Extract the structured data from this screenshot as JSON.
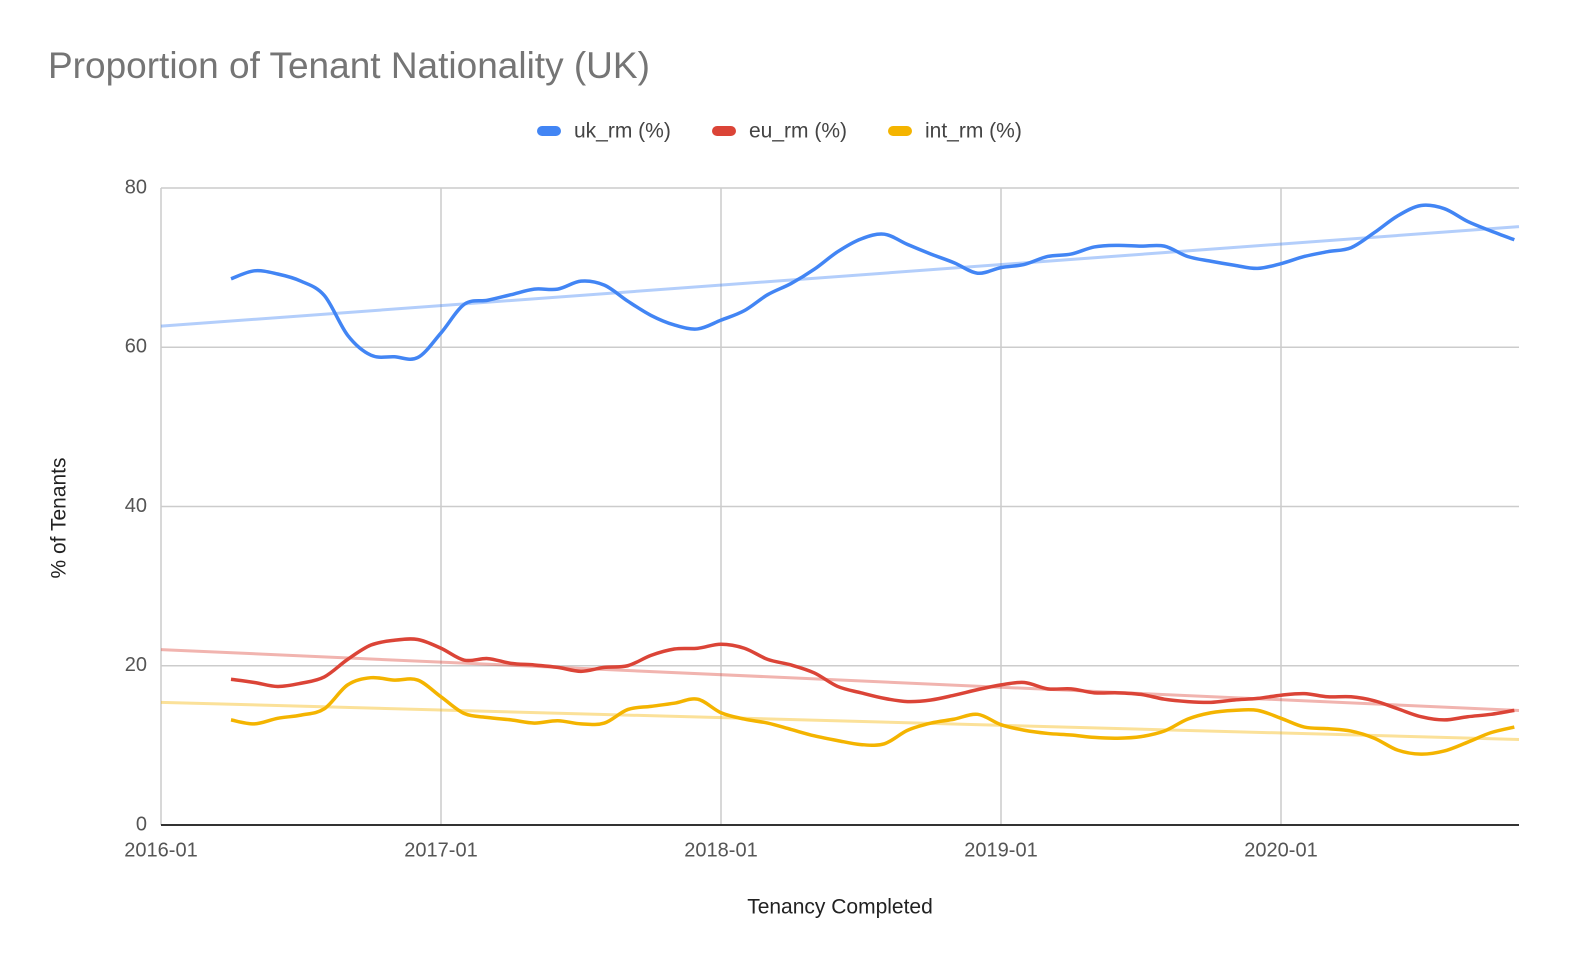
{
  "chart_data": {
    "type": "line",
    "title": "Proportion of Tenant Nationality (UK)",
    "xlabel": "Tenancy Completed",
    "ylabel": "% of Tenants",
    "x": [
      "2016-04",
      "2016-05",
      "2016-06",
      "2016-07",
      "2016-08",
      "2016-09",
      "2016-10",
      "2016-11",
      "2016-12",
      "2017-01",
      "2017-02",
      "2017-03",
      "2017-04",
      "2017-05",
      "2017-06",
      "2017-07",
      "2017-08",
      "2017-09",
      "2017-10",
      "2017-11",
      "2017-12",
      "2018-01",
      "2018-02",
      "2018-03",
      "2018-04",
      "2018-05",
      "2018-06",
      "2018-07",
      "2018-08",
      "2018-09",
      "2018-10",
      "2018-11",
      "2018-12",
      "2019-01",
      "2019-02",
      "2019-03",
      "2019-04",
      "2019-05",
      "2019-06",
      "2019-07",
      "2019-08",
      "2019-09",
      "2019-10",
      "2019-11",
      "2019-12",
      "2020-01",
      "2020-02",
      "2020-03",
      "2020-04",
      "2020-05",
      "2020-06",
      "2020-07",
      "2020-08",
      "2020-09",
      "2020-10",
      "2020-11"
    ],
    "series": [
      {
        "name": "uk_rm (%)",
        "color": "#4285f4",
        "values": [
          68.6,
          69.6,
          69.2,
          68.3,
          66.5,
          61.5,
          59.0,
          58.8,
          58.7,
          61.8,
          65.4,
          65.9,
          66.6,
          67.3,
          67.3,
          68.3,
          67.8,
          65.8,
          64.0,
          62.8,
          62.3,
          63.4,
          64.6,
          66.6,
          68.0,
          69.8,
          72.0,
          73.6,
          74.2,
          72.9,
          71.7,
          70.6,
          69.3,
          70.0,
          70.4,
          71.4,
          71.7,
          72.6,
          72.8,
          72.7,
          72.7,
          71.4,
          70.8,
          70.3,
          69.9,
          70.5,
          71.4,
          72.0,
          72.5,
          74.4,
          76.5,
          77.8,
          77.4,
          75.8,
          74.6,
          73.5
        ]
      },
      {
        "name": "eu_rm (%)",
        "color": "#db4437",
        "values": [
          18.3,
          17.9,
          17.4,
          17.8,
          18.6,
          20.8,
          22.6,
          23.2,
          23.3,
          22.2,
          20.7,
          20.9,
          20.3,
          20.1,
          19.8,
          19.3,
          19.8,
          20.0,
          21.3,
          22.1,
          22.2,
          22.7,
          22.2,
          20.8,
          20.1,
          19.1,
          17.4,
          16.6,
          15.9,
          15.5,
          15.7,
          16.3,
          17.0,
          17.6,
          17.9,
          17.1,
          17.1,
          16.6,
          16.6,
          16.4,
          15.8,
          15.5,
          15.4,
          15.7,
          15.9,
          16.3,
          16.5,
          16.1,
          16.1,
          15.6,
          14.6,
          13.6,
          13.2,
          13.6,
          13.9,
          14.4
        ]
      },
      {
        "name": "int_rm (%)",
        "color": "#f4b400",
        "values": [
          13.2,
          12.7,
          13.4,
          13.8,
          14.6,
          17.6,
          18.5,
          18.2,
          18.2,
          16.1,
          14.0,
          13.5,
          13.2,
          12.8,
          13.1,
          12.7,
          12.8,
          14.5,
          14.9,
          15.3,
          15.8,
          14.1,
          13.3,
          12.8,
          12.0,
          11.2,
          10.6,
          10.1,
          10.2,
          11.9,
          12.8,
          13.3,
          13.9,
          12.6,
          11.9,
          11.5,
          11.3,
          11.0,
          10.9,
          11.1,
          11.8,
          13.3,
          14.1,
          14.4,
          14.4,
          13.4,
          12.3,
          12.1,
          11.8,
          10.9,
          9.4,
          8.9,
          9.3,
          10.4,
          11.6,
          12.3
        ]
      }
    ],
    "trendline": true,
    "xlim": [
      "2016-01",
      "2020-11"
    ],
    "xticks": [
      "2016-01",
      "2017-01",
      "2018-01",
      "2019-01",
      "2020-01"
    ],
    "ylim": [
      0,
      80
    ],
    "yticks": [
      0,
      20,
      40,
      60,
      80
    ],
    "grid": true,
    "legend": "top"
  }
}
